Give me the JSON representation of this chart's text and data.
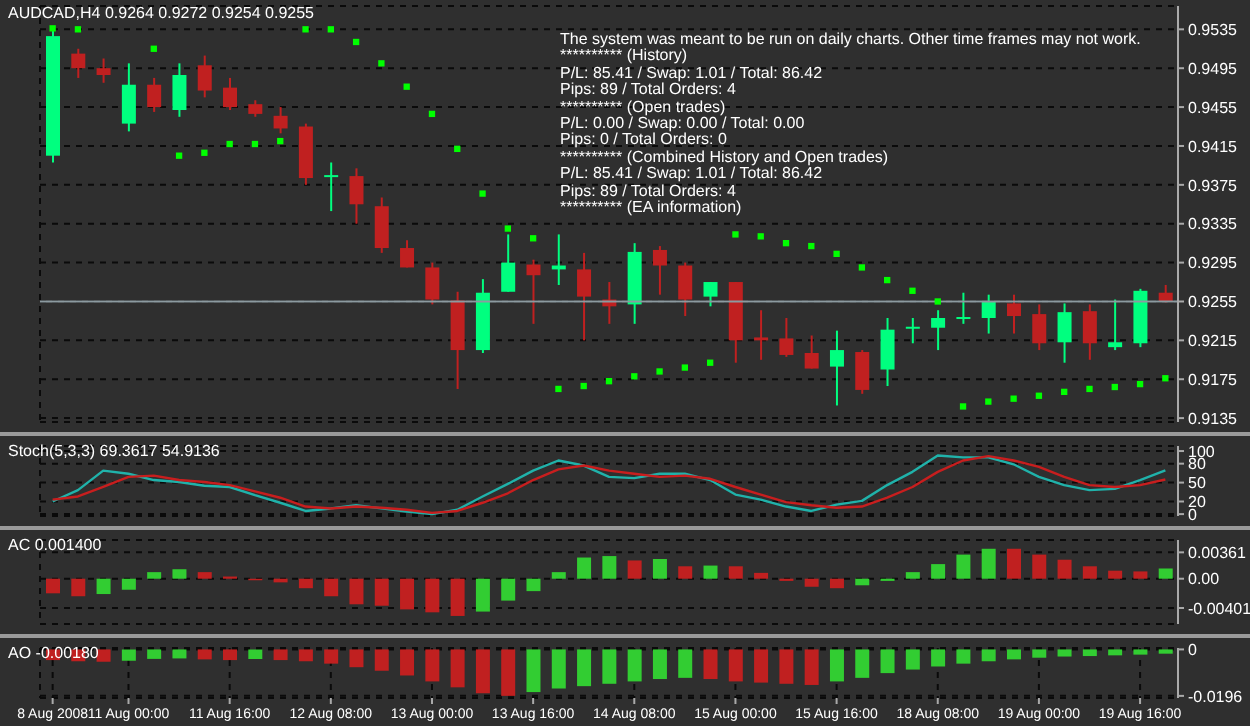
{
  "chart_data": [
    {
      "type": "candlestick",
      "title": "AUDCAD,H4 0.9264 0.9272 0.9254 0.9255",
      "annotations": [
        "The system was meant to be run on daily charts. Other time frames may not work.",
        "********** (History)",
        "P/L: 85.41 / Swap: 1.01 / Total: 86.42",
        "Pips: 89 / Total Orders: 4",
        "********** (Open trades)",
        "P/L: 0.00 / Swap: 0.00 / Total: 0.00",
        "Pips: 0 / Total Orders: 0",
        "********** (Combined History and Open trades)",
        "P/L: 85.41 / Swap: 1.01 / Total: 86.42",
        "Pips: 89 / Total Orders: 4",
        "********** (EA information)"
      ],
      "ohlc": [
        [
          0.9405,
          0.9535,
          0.9398,
          0.9528
        ],
        [
          0.951,
          0.9515,
          0.9485,
          0.9495
        ],
        [
          0.9495,
          0.9505,
          0.948,
          0.9488
        ],
        [
          0.9438,
          0.95,
          0.943,
          0.9478
        ],
        [
          0.9478,
          0.9485,
          0.945,
          0.9455
        ],
        [
          0.9452,
          0.95,
          0.9445,
          0.9488
        ],
        [
          0.9498,
          0.9508,
          0.9465,
          0.9472
        ],
        [
          0.9475,
          0.9485,
          0.9452,
          0.9455
        ],
        [
          0.9458,
          0.9462,
          0.9445,
          0.9448
        ],
        [
          0.9446,
          0.9455,
          0.9428,
          0.9433
        ],
        [
          0.9435,
          0.9438,
          0.9375,
          0.9382
        ],
        [
          0.9384,
          0.9398,
          0.9348,
          0.9385
        ],
        [
          0.9384,
          0.9392,
          0.9335,
          0.9355
        ],
        [
          0.9353,
          0.9362,
          0.9305,
          0.931
        ],
        [
          0.931,
          0.9318,
          0.929,
          0.929
        ],
        [
          0.929,
          0.9295,
          0.9252,
          0.9257
        ],
        [
          0.9256,
          0.9265,
          0.9165,
          0.9205
        ],
        [
          0.9205,
          0.9278,
          0.9202,
          0.9264
        ],
        [
          0.9265,
          0.9324,
          0.9265,
          0.9295
        ],
        [
          0.9293,
          0.9298,
          0.9232,
          0.9282
        ],
        [
          0.9288,
          0.9324,
          0.9272,
          0.9292
        ],
        [
          0.9288,
          0.9305,
          0.9215,
          0.926
        ],
        [
          0.9257,
          0.9275,
          0.9232,
          0.925
        ],
        [
          0.9252,
          0.9315,
          0.9232,
          0.9306
        ],
        [
          0.9308,
          0.9312,
          0.9262,
          0.9292
        ],
        [
          0.9292,
          0.9295,
          0.924,
          0.9257
        ],
        [
          0.926,
          0.9275,
          0.925,
          0.9275
        ],
        [
          0.9275,
          0.9275,
          0.9192,
          0.9215
        ],
        [
          0.9218,
          0.9246,
          0.9195,
          0.9215
        ],
        [
          0.9217,
          0.9238,
          0.9198,
          0.92
        ],
        [
          0.9202,
          0.922,
          0.9186,
          0.9186
        ],
        [
          0.9188,
          0.9225,
          0.9148,
          0.9205
        ],
        [
          0.9203,
          0.9205,
          0.916,
          0.9164
        ],
        [
          0.9185,
          0.9238,
          0.9168,
          0.9226
        ],
        [
          0.9228,
          0.9238,
          0.9212,
          0.9229
        ],
        [
          0.9228,
          0.9246,
          0.9205,
          0.9238
        ],
        [
          0.9238,
          0.9264,
          0.9232,
          0.9239
        ],
        [
          0.9238,
          0.9262,
          0.9222,
          0.9255
        ],
        [
          0.9253,
          0.9262,
          0.9222,
          0.924
        ],
        [
          0.9242,
          0.9252,
          0.9205,
          0.9212
        ],
        [
          0.9213,
          0.9253,
          0.9192,
          0.9244
        ],
        [
          0.9245,
          0.9252,
          0.9195,
          0.9212
        ],
        [
          0.9208,
          0.9257,
          0.9205,
          0.9213
        ],
        [
          0.9212,
          0.9268,
          0.9208,
          0.9266
        ],
        [
          0.9264,
          0.9272,
          0.9254,
          0.9255
        ]
      ],
      "colors": [
        "#00ff7f",
        "#c02020",
        "#c02020",
        "#00ff7f",
        "#c02020",
        "#00ff7f",
        "#c02020",
        "#c02020",
        "#c02020",
        "#c02020",
        "#c02020",
        "#00ff7f",
        "#c02020",
        "#c02020",
        "#c02020",
        "#c02020",
        "#c02020",
        "#00ff7f",
        "#00ff7f",
        "#c02020",
        "#00ff7f",
        "#c02020",
        "#c02020",
        "#00ff7f",
        "#c02020",
        "#c02020",
        "#00ff7f",
        "#c02020",
        "#c02020",
        "#c02020",
        "#c02020",
        "#00ff7f",
        "#c02020",
        "#00ff7f",
        "#00ff7f",
        "#00ff7f",
        "#00ff7f",
        "#00ff7f",
        "#c02020",
        "#c02020",
        "#00ff7f",
        "#c02020",
        "#00ff7f",
        "#00ff7f",
        "#c02020"
      ],
      "series": [
        {
          "type": "scatter",
          "color": "#00ff00",
          "marker": "square",
          "values": [
            0.9536,
            0.9535,
            null,
            null,
            0.9515,
            0.9405,
            0.9408,
            0.9417,
            0.9417,
            0.942,
            0.9535,
            0.9535,
            0.9522,
            0.95,
            0.9476,
            0.9448,
            0.9412,
            0.9366,
            0.933,
            0.932,
            0.9165,
            0.9168,
            0.9173,
            0.9178,
            0.9183,
            0.9187,
            0.9192,
            0.9324,
            0.9322,
            0.9315,
            0.9312,
            0.9304,
            0.929,
            0.9277,
            0.9266,
            0.9255,
            0.9147,
            0.9152,
            0.9155,
            0.9158,
            0.9162,
            0.9165,
            0.9167,
            0.917,
            0.9176
          ]
        }
      ],
      "ylim": [
        0.9131,
        0.9559
      ],
      "yticks": [
        0.9135,
        0.9175,
        0.9215,
        0.9255,
        0.9295,
        0.9335,
        0.9375,
        0.9415,
        0.9455,
        0.9495,
        0.9535
      ],
      "ref_lines": [
        {
          "axis": "y",
          "value": 0.9255,
          "color": "#8c9aa0"
        }
      ],
      "grid": true,
      "tick_labels": "y"
    },
    {
      "type": "line",
      "title": "Stoch(5,3,3) 69.3617 54.9136",
      "series": [
        {
          "color": "#20b2aa",
          "values": [
            20,
            38,
            69,
            64,
            54,
            51,
            45,
            43,
            30,
            18,
            5,
            9,
            14,
            9,
            4,
            0,
            7,
            28,
            48,
            69,
            85,
            77,
            59,
            57,
            64,
            64,
            54,
            31,
            23,
            12,
            5,
            15,
            21,
            46,
            67,
            93,
            90,
            90,
            79,
            59,
            46,
            38,
            40,
            54,
            69.3617
          ]
        },
        {
          "color": "#c81e1e",
          "values": [
            23,
            28,
            43,
            59,
            61,
            54,
            51,
            46,
            36,
            26,
            12,
            9,
            12,
            10,
            7,
            2,
            5,
            18,
            33,
            54,
            71,
            77,
            69,
            64,
            59,
            61,
            56,
            43,
            31,
            19,
            14,
            10,
            12,
            26,
            43,
            67,
            85,
            92,
            85,
            75,
            59,
            46,
            43,
            46,
            54.9136
          ]
        }
      ],
      "ylim": [
        -3,
        108
      ],
      "yticks": [
        0,
        20,
        50,
        80,
        100
      ],
      "grid": true,
      "tick_labels": "y",
      "line_style": "solid",
      "marker": "none"
    },
    {
      "type": "bar",
      "title": "AC 0.001400",
      "values": [
        -0.002,
        -0.0024,
        -0.0021,
        -0.0015,
        0.0009,
        0.0013,
        0.0009,
        0.0003,
        -0.0002,
        -0.0005,
        -0.0013,
        -0.0024,
        -0.0035,
        -0.0037,
        -0.0042,
        -0.0046,
        -0.0051,
        -0.0045,
        -0.003,
        -0.0017,
        0.0009,
        0.0029,
        0.0031,
        0.0025,
        0.0027,
        0.0017,
        0.0018,
        0.0017,
        0.0008,
        -0.0003,
        -0.0011,
        -0.0013,
        -0.0009,
        -0.0003,
        0.0009,
        0.002,
        0.0033,
        0.0041,
        0.0041,
        0.0033,
        0.0026,
        0.0017,
        0.0011,
        0.001,
        0.0014
      ],
      "colors": [
        "#c02020",
        "#c02020",
        "#32cd32",
        "#32cd32",
        "#32cd32",
        "#32cd32",
        "#c02020",
        "#c02020",
        "#c02020",
        "#c02020",
        "#c02020",
        "#c02020",
        "#c02020",
        "#c02020",
        "#c02020",
        "#c02020",
        "#c02020",
        "#32cd32",
        "#32cd32",
        "#32cd32",
        "#32cd32",
        "#32cd32",
        "#32cd32",
        "#c02020",
        "#32cd32",
        "#c02020",
        "#32cd32",
        "#c02020",
        "#c02020",
        "#c02020",
        "#c02020",
        "#c02020",
        "#32cd32",
        "#32cd32",
        "#32cd32",
        "#32cd32",
        "#32cd32",
        "#32cd32",
        "#c02020",
        "#c02020",
        "#c02020",
        "#c02020",
        "#c02020",
        "#c02020",
        "#32cd32"
      ],
      "ylim": [
        -0.0062,
        0.0053
      ],
      "yticks": [
        {
          "value": -0.00401,
          "label": "-0.00401"
        },
        {
          "value": 0,
          "label": "0.00"
        },
        {
          "value": 0.00361,
          "label": "0.00361"
        }
      ],
      "grid": true,
      "tick_labels": "y"
    },
    {
      "type": "bar",
      "title": "AO -0.00180",
      "categories": [
        "8 Aug 2008",
        null,
        null,
        "11 Aug 00:00",
        null,
        null,
        null,
        "11 Aug 16:00",
        null,
        null,
        null,
        "12 Aug 08:00",
        null,
        null,
        null,
        "13 Aug 00:00",
        null,
        null,
        null,
        "13 Aug 16:00",
        null,
        null,
        null,
        "14 Aug 08:00",
        null,
        null,
        null,
        "15 Aug 00:00",
        null,
        null,
        null,
        "15 Aug 16:00",
        null,
        null,
        null,
        "18 Aug 08:00",
        null,
        null,
        null,
        "19 Aug 00:00",
        null,
        null,
        null,
        "19 Aug 16:00",
        null
      ],
      "values": [
        -0.0045,
        -0.005,
        -0.0052,
        -0.0048,
        -0.004,
        -0.0038,
        -0.0042,
        -0.0045,
        -0.004,
        -0.0045,
        -0.005,
        -0.006,
        -0.0075,
        -0.009,
        -0.011,
        -0.0135,
        -0.016,
        -0.0185,
        -0.0196,
        -0.018,
        -0.0165,
        -0.0155,
        -0.0145,
        -0.0135,
        -0.0125,
        -0.012,
        -0.0125,
        -0.0135,
        -0.014,
        -0.0145,
        -0.015,
        -0.0135,
        -0.012,
        -0.01,
        -0.0085,
        -0.0072,
        -0.006,
        -0.005,
        -0.0042,
        -0.0035,
        -0.003,
        -0.0028,
        -0.0025,
        -0.0022,
        -0.0018
      ],
      "colors": [
        "#c02020",
        "#c02020",
        "#c02020",
        "#32cd32",
        "#32cd32",
        "#32cd32",
        "#c02020",
        "#c02020",
        "#32cd32",
        "#c02020",
        "#c02020",
        "#c02020",
        "#c02020",
        "#c02020",
        "#c02020",
        "#c02020",
        "#c02020",
        "#c02020",
        "#c02020",
        "#32cd32",
        "#32cd32",
        "#32cd32",
        "#32cd32",
        "#32cd32",
        "#32cd32",
        "#32cd32",
        "#c02020",
        "#c02020",
        "#c02020",
        "#c02020",
        "#c02020",
        "#32cd32",
        "#32cd32",
        "#32cd32",
        "#32cd32",
        "#32cd32",
        "#32cd32",
        "#32cd32",
        "#32cd32",
        "#32cd32",
        "#32cd32",
        "#32cd32",
        "#32cd32",
        "#32cd32",
        "#32cd32"
      ],
      "ylim": [
        -0.0205,
        0.0006
      ],
      "yticks": [
        -0.0196,
        0
      ],
      "grid": true
    }
  ]
}
